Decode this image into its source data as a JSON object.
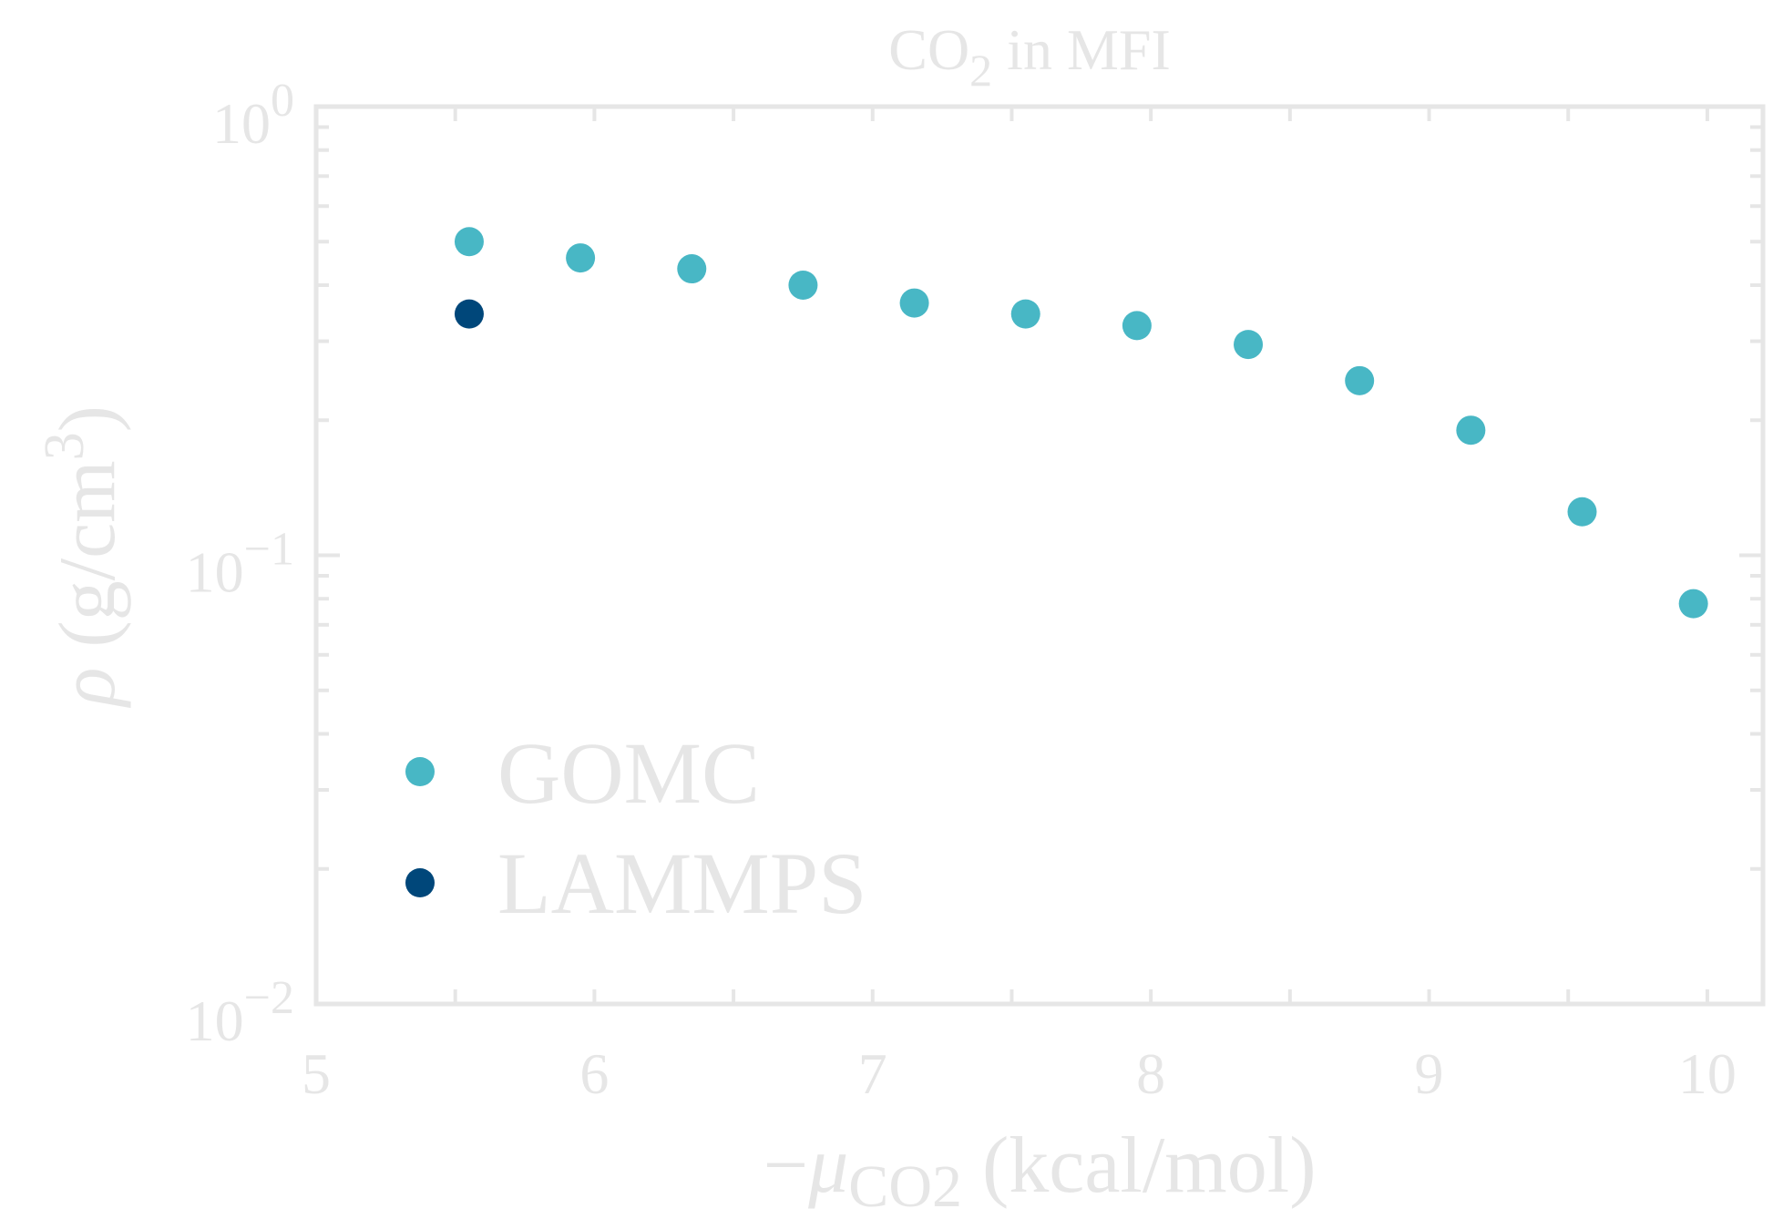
{
  "chart_data": {
    "type": "scatter",
    "title": {
      "main": "CO",
      "sub": "2",
      "rest": " in MFI"
    },
    "xlabel": {
      "prefix": "−",
      "mu": "μ",
      "sub": "CO2",
      "units": " (kcal/mol)"
    },
    "ylabel": {
      "rho": "ρ",
      "units": " (g/cm",
      "sup": "3",
      "close": ")"
    },
    "xlim": [
      5,
      10.2
    ],
    "ylim": [
      0.01,
      1
    ],
    "yscale": "log",
    "x_ticks": [
      {
        "value": 5,
        "label": "5"
      },
      {
        "value": 6,
        "label": "6"
      },
      {
        "value": 7,
        "label": "7"
      },
      {
        "value": 8,
        "label": "8"
      },
      {
        "value": 9,
        "label": "9"
      },
      {
        "value": 10,
        "label": "10"
      }
    ],
    "y_ticks": [
      {
        "value": 1,
        "base": "10",
        "exp": "0"
      },
      {
        "value": 0.1,
        "base": "10",
        "exp": "−1"
      },
      {
        "value": 0.01,
        "base": "10",
        "exp": "−2"
      }
    ],
    "colors": {
      "axis": "#e6e6e6",
      "gomc": "#48b7c5",
      "lammps": "#00477a"
    },
    "legend_position": "lower-left",
    "series": [
      {
        "name": "GOMC",
        "color": "#48b7c5",
        "x": [
          5.55,
          5.95,
          6.35,
          6.75,
          7.15,
          7.55,
          7.95,
          8.35,
          8.75,
          9.15,
          9.55,
          9.95
        ],
        "y": [
          0.5,
          0.46,
          0.435,
          0.4,
          0.365,
          0.345,
          0.325,
          0.295,
          0.245,
          0.19,
          0.125,
          0.078
        ]
      },
      {
        "name": "LAMMPS",
        "color": "#00477a",
        "x": [
          5.55
        ],
        "y": [
          0.345
        ]
      }
    ]
  }
}
